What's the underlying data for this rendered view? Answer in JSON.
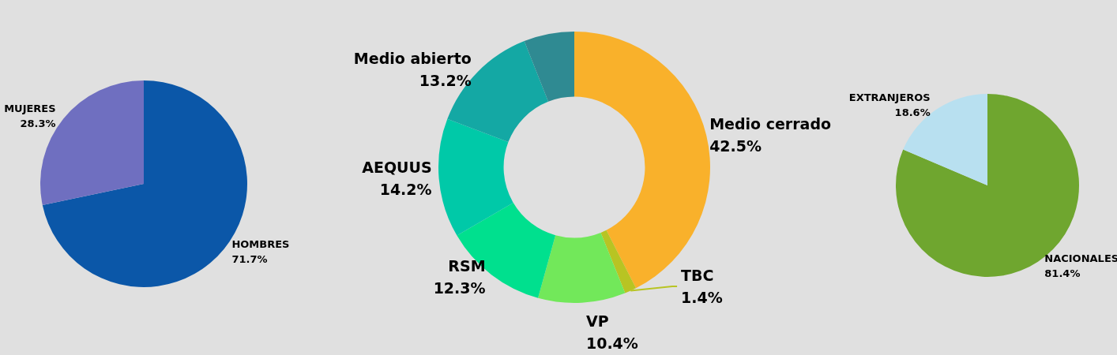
{
  "chart_data": [
    {
      "type": "pie",
      "categories": [
        "HOMBRES",
        "MUJERES"
      ],
      "values": [
        71.7,
        28.3
      ],
      "colors": [
        "#0b57a8",
        "#6f6fc0"
      ],
      "value_labels": [
        "71.7%",
        "28.3%"
      ]
    },
    {
      "type": "donut",
      "categories": [
        "Medio cerrado",
        "TBC",
        "VP",
        "RSM",
        "AEQUUS",
        "Medio abierto",
        null
      ],
      "values": [
        42.5,
        1.4,
        10.4,
        12.3,
        14.2,
        13.2,
        6.0
      ],
      "colors": [
        "#f9b12b",
        "#b8c423",
        "#72e85a",
        "#00e08e",
        "#00c9a8",
        "#14a8a4",
        "#2f8a92"
      ],
      "value_labels": [
        "42.5%",
        "1.4%",
        "10.4%",
        "12.3%",
        "14.2%",
        "13.2%",
        null
      ]
    },
    {
      "type": "pie",
      "categories": [
        "NACIONALES",
        "EXTRANJEROS"
      ],
      "values": [
        81.4,
        18.6
      ],
      "colors": [
        "#6fa62f",
        "#b8e0f0"
      ],
      "value_labels": [
        "81.4%",
        "18.6%"
      ]
    }
  ]
}
